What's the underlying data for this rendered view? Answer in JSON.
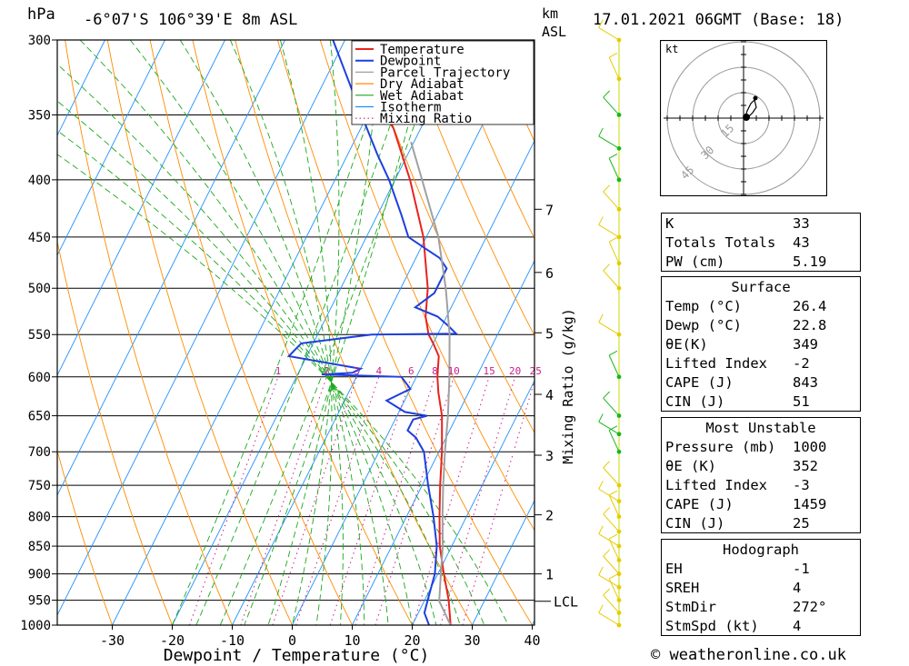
{
  "header": {
    "unit_hpa": "hPa",
    "location": "-6°07'S  106°39'E  8m  ASL",
    "unit_km": "km",
    "unit_asl": "ASL",
    "datetime": "17.01.2021  06GMT  (Base: 18)"
  },
  "footer": {
    "copyright": "© weatheronline.co.uk"
  },
  "chart_data": {
    "type": "line",
    "title": "Skew-T log-P diagram",
    "xlabel": "Dewpoint / Temperature (°C)",
    "ylabel": "hPa",
    "y2label": "Mixing Ratio (g/kg)",
    "x_ticks": [
      -30,
      -20,
      -10,
      0,
      10,
      20,
      30,
      40
    ],
    "pressure_levels": [
      300,
      350,
      400,
      450,
      500,
      550,
      600,
      650,
      700,
      750,
      800,
      850,
      900,
      950,
      1000
    ],
    "height_km_labels": [
      {
        "km": "1",
        "p": 900
      },
      {
        "km": "2",
        "p": 797
      },
      {
        "km": "3",
        "p": 705
      },
      {
        "km": "4",
        "p": 622
      },
      {
        "km": "5",
        "p": 548
      },
      {
        "km": "6",
        "p": 484
      },
      {
        "km": "7",
        "p": 425
      },
      {
        "km": "LCL",
        "p": 952
      }
    ],
    "mixing_ratio_labels": [
      "1",
      "2",
      "3",
      "4",
      "6",
      "8",
      "10",
      "15",
      "20",
      "25"
    ],
    "legend": [
      {
        "name": "Temperature",
        "color": "#e8231d",
        "style": "solid"
      },
      {
        "name": "Dewpoint",
        "color": "#1d3fe0",
        "style": "solid"
      },
      {
        "name": "Parcel Trajectory",
        "color": "#a0a0a0",
        "style": "solid"
      },
      {
        "name": "Dry Adiabat",
        "color": "#ff8c00",
        "style": "solid"
      },
      {
        "name": "Wet Adiabat",
        "color": "#1aa81a",
        "style": "solid"
      },
      {
        "name": "Isotherm",
        "color": "#1e90ff",
        "style": "solid"
      },
      {
        "name": "Mixing Ratio",
        "color": "#c81e8c",
        "style": "dotted"
      }
    ],
    "series": [
      {
        "name": "Temperature",
        "points": [
          [
            1000,
            26.4
          ],
          [
            950,
            24.0
          ],
          [
            900,
            21.0
          ],
          [
            850,
            18.0
          ],
          [
            800,
            15.5
          ],
          [
            750,
            13.0
          ],
          [
            700,
            10.5
          ],
          [
            650,
            7.5
          ],
          [
            620,
            5.0
          ],
          [
            600,
            3.5
          ],
          [
            575,
            2.0
          ],
          [
            560,
            0.0
          ],
          [
            550,
            -1.5
          ],
          [
            530,
            -3.5
          ],
          [
            500,
            -5.5
          ],
          [
            450,
            -10.5
          ],
          [
            400,
            -17.5
          ],
          [
            360,
            -24.5
          ],
          [
            350,
            -27.0
          ]
        ]
      },
      {
        "name": "Dewpoint",
        "points": [
          [
            1000,
            22.8
          ],
          [
            975,
            21.0
          ],
          [
            950,
            20.5
          ],
          [
            900,
            19.5
          ],
          [
            850,
            17.5
          ],
          [
            800,
            14.5
          ],
          [
            750,
            11.0
          ],
          [
            700,
            7.5
          ],
          [
            680,
            5.0
          ],
          [
            670,
            3.0
          ],
          [
            655,
            3.0
          ],
          [
            650,
            5.0
          ],
          [
            645,
            1.0
          ],
          [
            630,
            -3.0
          ],
          [
            615,
            0.0
          ],
          [
            600,
            -2.5
          ],
          [
            597,
            -16.0
          ],
          [
            595,
            -11.0
          ],
          [
            590,
            -10.0
          ],
          [
            575,
            -23.0
          ],
          [
            560,
            -22.0
          ],
          [
            550,
            -11.0
          ],
          [
            549,
            3.0
          ],
          [
            540,
            1.0
          ],
          [
            530,
            -1.5
          ],
          [
            520,
            -6.0
          ],
          [
            505,
            -4.0
          ],
          [
            480,
            -4.0
          ],
          [
            470,
            -6.0
          ],
          [
            460,
            -9.5
          ],
          [
            450,
            -13.0
          ],
          [
            430,
            -16.0
          ],
          [
            400,
            -21.0
          ],
          [
            380,
            -25.0
          ],
          [
            350,
            -31.0
          ],
          [
            300,
            -42.0
          ]
        ]
      },
      {
        "name": "Parcel Trajectory",
        "points": [
          [
            1000,
            26.4
          ],
          [
            952,
            22.5
          ],
          [
            900,
            20.5
          ],
          [
            850,
            18.5
          ],
          [
            800,
            16.0
          ],
          [
            750,
            13.5
          ],
          [
            700,
            11.0
          ],
          [
            650,
            8.5
          ],
          [
            600,
            5.5
          ],
          [
            550,
            2.0
          ],
          [
            500,
            -2.5
          ],
          [
            450,
            -8.0
          ],
          [
            400,
            -15.5
          ],
          [
            370,
            -20.5
          ]
        ]
      }
    ],
    "wind_barbs_note": "wind barbs plotted along right edge (green/yellow)",
    "hodograph": {
      "label": "kt",
      "rings": [
        "15",
        "30",
        "45"
      ]
    }
  },
  "indices": {
    "top": [
      {
        "label": "K",
        "value": "33"
      },
      {
        "label": "Totals Totals",
        "value": "43"
      },
      {
        "label": "PW (cm)",
        "value": "5.19"
      }
    ],
    "surface_title": "Surface",
    "surface": [
      {
        "label": "Temp (°C)",
        "value": "26.4"
      },
      {
        "label": "Dewp (°C)",
        "value": "22.8"
      },
      {
        "label": "θE(K)",
        "value": "349"
      },
      {
        "label": "Lifted Index",
        "value": "-2"
      },
      {
        "label": "CAPE (J)",
        "value": "843"
      },
      {
        "label": "CIN (J)",
        "value": "51"
      }
    ],
    "mu_title": "Most Unstable",
    "most_unstable": [
      {
        "label": "Pressure (mb)",
        "value": "1000"
      },
      {
        "label": "θE (K)",
        "value": "352"
      },
      {
        "label": "Lifted Index",
        "value": "-3"
      },
      {
        "label": "CAPE (J)",
        "value": "1459"
      },
      {
        "label": "CIN (J)",
        "value": "25"
      }
    ],
    "hodo_title": "Hodograph",
    "hodograph": [
      {
        "label": "EH",
        "value": "-1"
      },
      {
        "label": "SREH",
        "value": "4"
      },
      {
        "label": "StmDir",
        "value": "272°"
      },
      {
        "label": "StmSpd (kt)",
        "value": "4"
      }
    ]
  }
}
